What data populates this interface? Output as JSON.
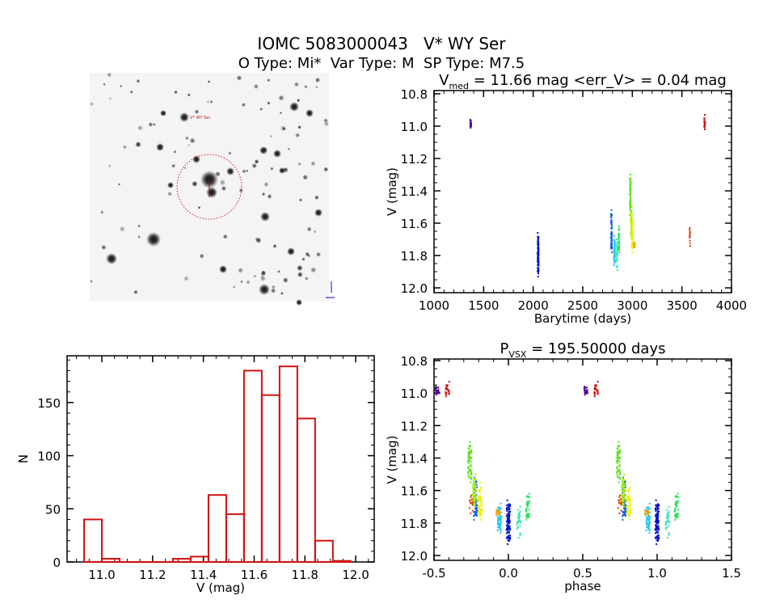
{
  "header": {
    "title": "IOMC 5083000043   V* WY Ser",
    "subtitle": "O Type: Mi*  Var Type: M  SP Type: M7.5"
  },
  "image_panel": {
    "target_label": "V* WY Ser",
    "circle_color": "#d02020"
  },
  "chart_data": [
    {
      "id": "lightcurve",
      "type": "scatter",
      "title_main": "V",
      "title_sub": "med",
      "title_rest": " = 11.66 mag <err_V> = 0.04 mag",
      "xlabel": "Barytime (days)",
      "ylabel": "V (mag)",
      "xlim": [
        1000,
        4000
      ],
      "ylim": [
        10.78,
        12.03
      ],
      "y_inverted": true,
      "xticks": [
        "1000",
        "1500",
        "2000",
        "2500",
        "3000",
        "3500",
        "4000"
      ],
      "yticks": [
        "10.8",
        "11.0",
        "11.2",
        "11.4",
        "11.6",
        "11.8",
        "12.0"
      ],
      "clusters": [
        {
          "t": 1370,
          "phase": -0.48,
          "vmin": 10.96,
          "vmax": 11.01,
          "n": 30,
          "color": "#5a0096"
        },
        {
          "t": 2050,
          "phase": 0.0,
          "vmin": 11.66,
          "vmax": 11.93,
          "n": 90,
          "color": "#0010c8"
        },
        {
          "t": 2790,
          "phase": -0.22,
          "vmin": 11.52,
          "vmax": 11.78,
          "n": 60,
          "color": "#1060e0"
        },
        {
          "t": 2820,
          "phase": -0.06,
          "vmin": 11.68,
          "vmax": 11.86,
          "n": 60,
          "color": "#20c8e8"
        },
        {
          "t": 2845,
          "phase": 0.07,
          "vmin": 11.7,
          "vmax": 11.89,
          "n": 30,
          "color": "#30e8b0"
        },
        {
          "t": 2865,
          "phase": 0.13,
          "vmin": 11.62,
          "vmax": 11.78,
          "n": 40,
          "color": "#30e060"
        },
        {
          "t": 2980,
          "phase": -0.26,
          "vmin": 11.3,
          "vmax": 11.55,
          "n": 60,
          "color": "#60e020"
        },
        {
          "t": 2990,
          "phase": -0.23,
          "vmin": 11.5,
          "vmax": 11.7,
          "n": 60,
          "color": "#a0f000"
        },
        {
          "t": 3000,
          "phase": -0.19,
          "vmin": 11.55,
          "vmax": 11.78,
          "n": 50,
          "color": "#f0f000"
        },
        {
          "t": 3020,
          "phase": -0.07,
          "vmin": 11.72,
          "vmax": 11.75,
          "n": 15,
          "color": "#f0a000"
        },
        {
          "t": 3580,
          "phase": -0.25,
          "vmin": 11.63,
          "vmax": 11.74,
          "n": 15,
          "color": "#e04010"
        },
        {
          "t": 3730,
          "phase": -0.41,
          "vmin": 10.93,
          "vmax": 11.02,
          "n": 20,
          "color": "#d01010"
        }
      ]
    },
    {
      "id": "histogram",
      "type": "bar",
      "xlabel": "V (mag)",
      "ylabel": "N",
      "xlim": [
        10.863,
        12.073
      ],
      "ylim": [
        0,
        194
      ],
      "xticks": [
        "11.0",
        "11.2",
        "11.4",
        "11.6",
        "11.8",
        "12.0"
      ],
      "yticks": [
        "0",
        "50",
        "100",
        "150"
      ],
      "bin_width": 0.07,
      "bin_starts": [
        10.93,
        11.0,
        11.07,
        11.14,
        11.21,
        11.28,
        11.35,
        11.42,
        11.49,
        11.56,
        11.63,
        11.7,
        11.77,
        11.84,
        11.91
      ],
      "values": [
        40,
        3,
        0,
        0,
        0,
        3,
        5,
        63,
        45,
        180,
        157,
        184,
        135,
        20,
        1
      ],
      "color": "#d01010"
    },
    {
      "id": "phased",
      "type": "scatter",
      "title_main": "P",
      "title_sub": "VSX",
      "title_rest": " = 195.50000 days",
      "xlabel": "phase",
      "ylabel": "V (mag)",
      "xlim": [
        -0.5,
        1.5
      ],
      "ylim": [
        10.79,
        12.03
      ],
      "y_inverted": true,
      "xticks": [
        "-0.5",
        "0.0",
        "0.5",
        "1.0",
        "1.5"
      ],
      "yticks": [
        "10.8",
        "11.0",
        "11.2",
        "11.4",
        "11.6",
        "11.8",
        "12.0"
      ]
    }
  ]
}
